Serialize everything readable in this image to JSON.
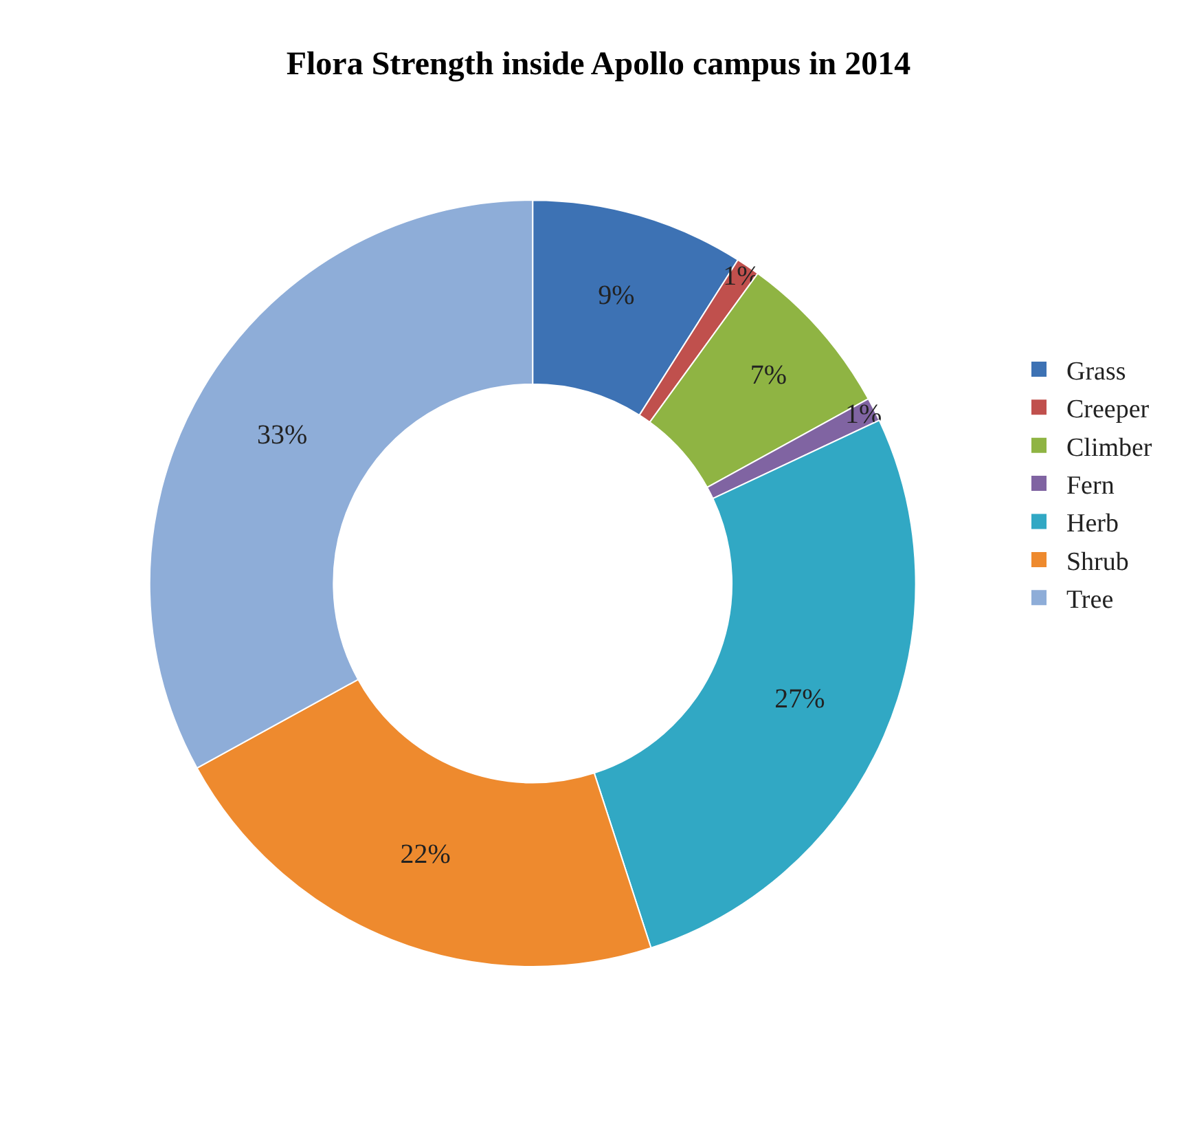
{
  "chart_data": {
    "type": "donut",
    "title": "Flora Strength inside Apollo campus in 2014",
    "categories": [
      "Grass",
      "Creeper",
      "Climber",
      "Fern",
      "Herb",
      "Shrub",
      "Tree"
    ],
    "values": [
      9,
      1,
      7,
      1,
      27,
      22,
      33
    ],
    "colors": [
      "#3d72b4",
      "#c0504d",
      "#8fb443",
      "#8064a2",
      "#31a8c4",
      "#ee8a2e",
      "#8eadd8"
    ],
    "value_labels": [
      "9%",
      "1%",
      "7%",
      "1%",
      "27%",
      "22%",
      "33%"
    ],
    "legend": "right"
  }
}
